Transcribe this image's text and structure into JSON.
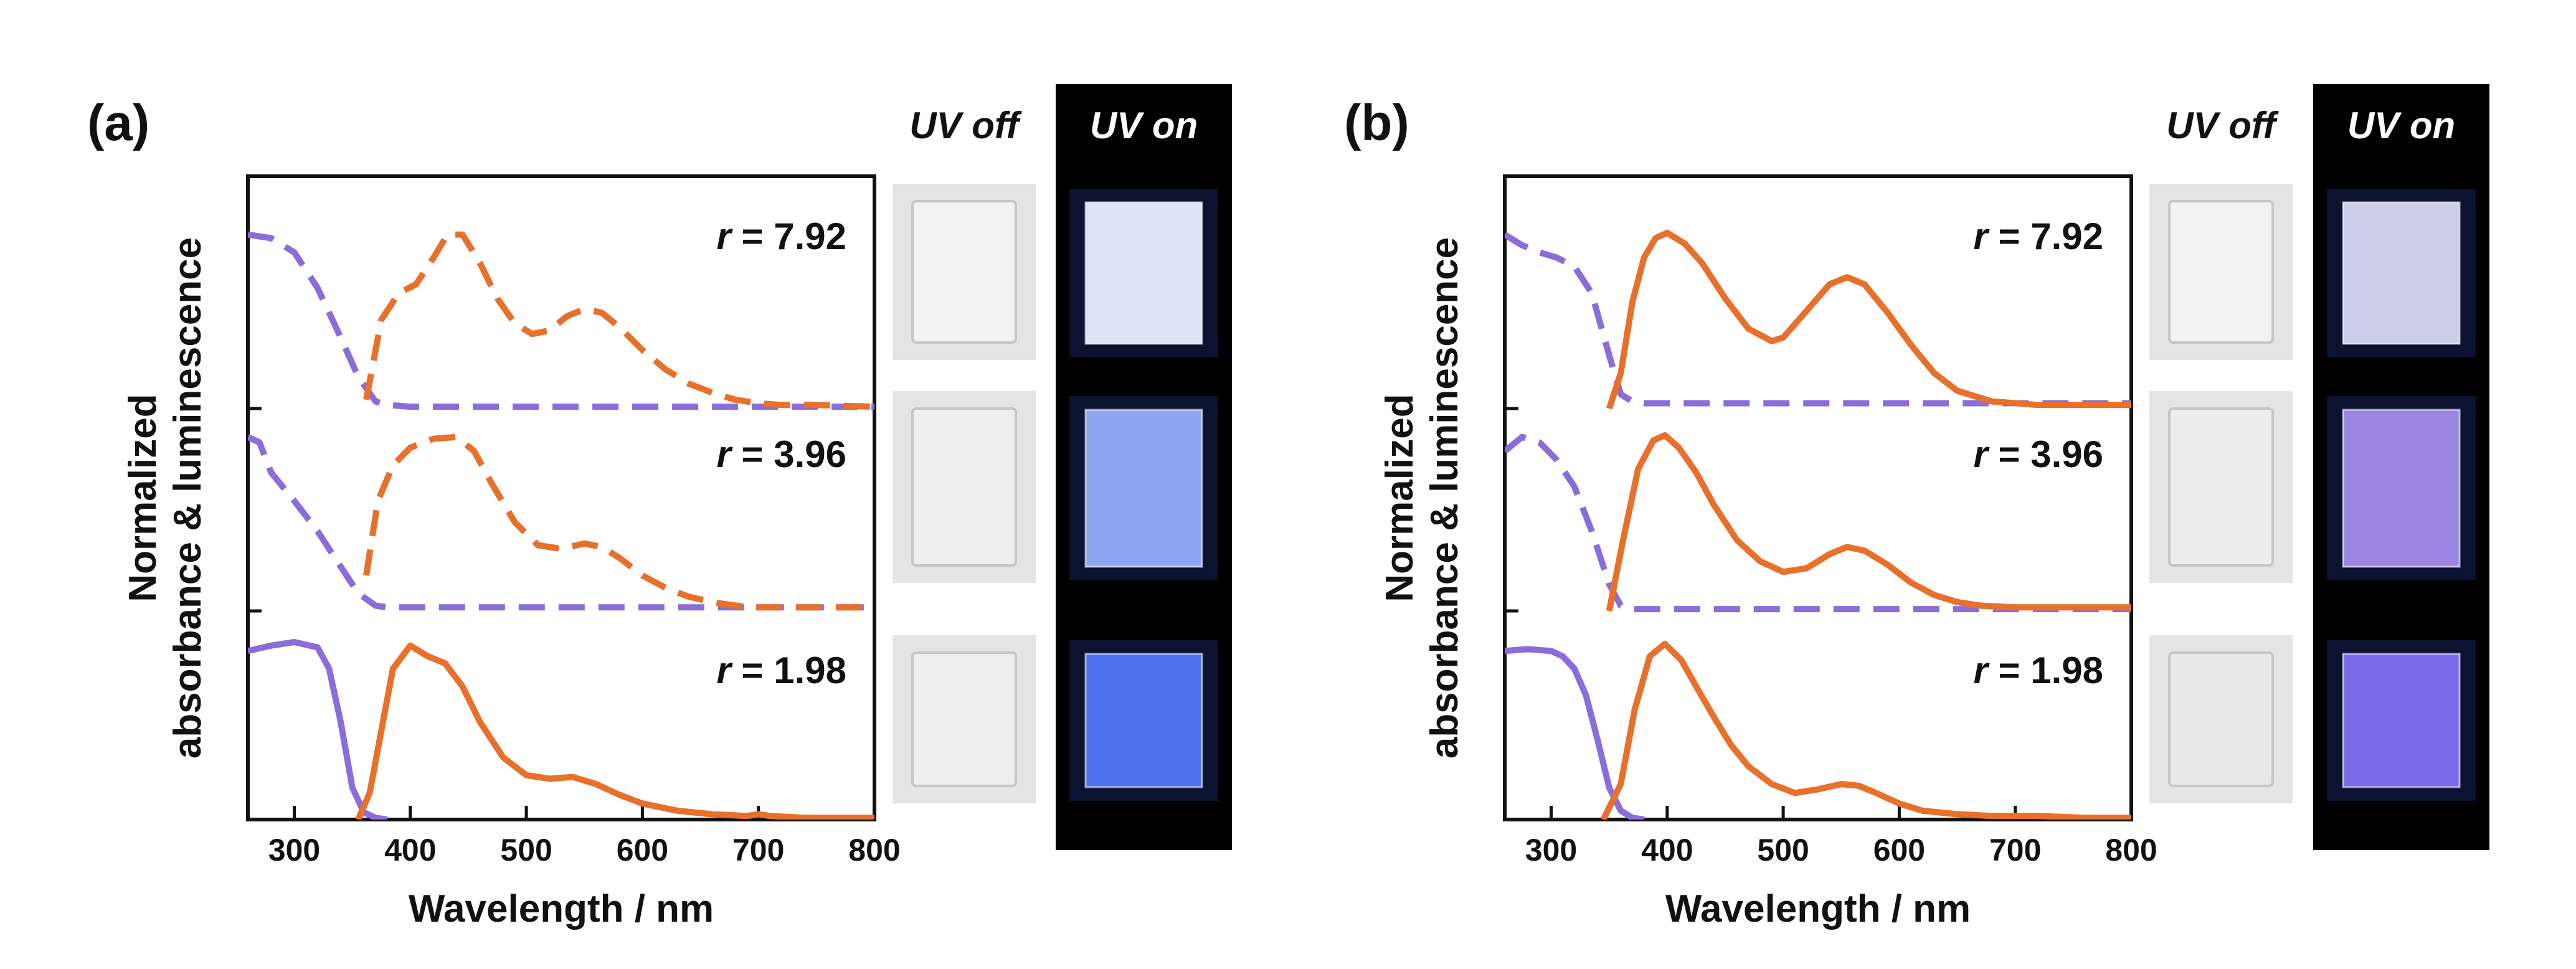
{
  "chart_data": [
    {
      "type": "line",
      "panel_label": "(a)",
      "xlabel": "Wavelength / nm",
      "ylabel_line1": "Normalized",
      "ylabel_line2": "absorbance & luminescence",
      "xlim": [
        260,
        800
      ],
      "xticks": [
        300,
        400,
        500,
        600,
        700,
        800
      ],
      "x_tick_labels": [
        "300",
        "400",
        "500",
        "600",
        "700",
        "800"
      ],
      "y_ticks_shown": false,
      "stacked_traces": [
        {
          "label_prefix": "r",
          "label_value": "= 7.92",
          "line_style": "dashed",
          "absorbance": {
            "color": "#8B6CDB",
            "x": [
              260,
              280,
              300,
              320,
              340,
              355,
              370,
              380,
              400,
              500,
              600,
              700,
              800
            ],
            "y": [
              0.98,
              0.96,
              0.88,
              0.68,
              0.4,
              0.18,
              0.04,
              0.02,
              0.01,
              0.01,
              0.01,
              0.01,
              0.01
            ]
          },
          "luminescence": {
            "color": "#E8702A",
            "x": [
              362,
              375,
              390,
              405,
              420,
              432,
              445,
              460,
              475,
              490,
              505,
              520,
              535,
              550,
              565,
              580,
              600,
              620,
              640,
              660,
              680,
              700,
              720,
              750,
              800
            ],
            "y": [
              0.05,
              0.5,
              0.65,
              0.7,
              0.85,
              0.98,
              0.98,
              0.82,
              0.62,
              0.48,
              0.42,
              0.44,
              0.52,
              0.56,
              0.54,
              0.46,
              0.33,
              0.22,
              0.14,
              0.09,
              0.05,
              0.03,
              0.02,
              0.02,
              0.01
            ]
          }
        },
        {
          "label_prefix": "r",
          "label_value": "= 3.96",
          "line_style": "dashed",
          "absorbance": {
            "color": "#8B6CDB",
            "x": [
              260,
              270,
              280,
              300,
              320,
              340,
              355,
              370,
              380,
              400,
              500,
              600,
              700,
              800
            ],
            "y": [
              0.98,
              0.95,
              0.78,
              0.62,
              0.45,
              0.25,
              0.1,
              0.03,
              0.02,
              0.02,
              0.02,
              0.02,
              0.02,
              0.02
            ]
          },
          "luminescence": {
            "color": "#E8702A",
            "x": [
              362,
              372,
              385,
              400,
              420,
              440,
              455,
              470,
              490,
              510,
              530,
              550,
              565,
              580,
              600,
              620,
              640,
              660,
              680,
              700,
              730,
              760,
              800
            ],
            "y": [
              0.2,
              0.62,
              0.82,
              0.92,
              0.97,
              0.98,
              0.9,
              0.72,
              0.5,
              0.37,
              0.35,
              0.38,
              0.36,
              0.3,
              0.2,
              0.13,
              0.08,
              0.05,
              0.03,
              0.02,
              0.02,
              0.02,
              0.02
            ]
          }
        },
        {
          "label_prefix": "r",
          "label_value": "= 1.98",
          "line_style": "solid",
          "absorbance": {
            "color": "#8B6CDB",
            "x": [
              260,
              280,
              300,
              320,
              330,
              340,
              350,
              360,
              370,
              380
            ],
            "y": [
              0.95,
              0.98,
              1.0,
              0.97,
              0.85,
              0.55,
              0.18,
              0.04,
              0.01,
              0.0
            ]
          },
          "luminescence": {
            "color": "#E8702A",
            "x": [
              355,
              365,
              375,
              385,
              400,
              415,
              430,
              445,
              460,
              480,
              500,
              520,
              540,
              560,
              580,
              600,
              630,
              660,
              690,
              700,
              710,
              740,
              800
            ],
            "y": [
              0.0,
              0.15,
              0.5,
              0.85,
              0.98,
              0.92,
              0.88,
              0.75,
              0.55,
              0.35,
              0.25,
              0.23,
              0.24,
              0.2,
              0.14,
              0.09,
              0.05,
              0.03,
              0.02,
              0.03,
              0.02,
              0.01,
              0.01
            ]
          }
        }
      ],
      "photos": {
        "off_title": "UV off",
        "on_title": "UV on",
        "off_rows": [
          "#f2f2f2",
          "#eeeeee",
          "#eeeeee"
        ],
        "on_rows": [
          "#dde3f7",
          "#8ea6f2",
          "#4f73f0"
        ]
      }
    },
    {
      "type": "line",
      "panel_label": "(b)",
      "xlabel": "Wavelength / nm",
      "ylabel_line1": "Normalized",
      "ylabel_line2": "absorbance & luminescence",
      "xlim": [
        260,
        800
      ],
      "xticks": [
        300,
        400,
        500,
        600,
        700,
        800
      ],
      "x_tick_labels": [
        "300",
        "400",
        "500",
        "600",
        "700",
        "800"
      ],
      "y_ticks_shown": false,
      "stacked_traces": [
        {
          "label_prefix": "r",
          "label_value": "= 7.92",
          "absorbance": {
            "color": "#8B6CDB",
            "line_style": "dashed",
            "x": [
              260,
              275,
              290,
              305,
              320,
              335,
              350,
              360,
              370,
              380,
              400,
              500,
              600,
              700,
              800
            ],
            "y": [
              0.98,
              0.92,
              0.88,
              0.85,
              0.8,
              0.65,
              0.3,
              0.08,
              0.04,
              0.03,
              0.03,
              0.03,
              0.03,
              0.03,
              0.03
            ]
          },
          "luminescence": {
            "color": "#E8702A",
            "line_style": "solid",
            "x": [
              350,
              360,
              370,
              380,
              390,
              400,
              415,
              430,
              450,
              470,
              490,
              500,
              520,
              540,
              555,
              570,
              590,
              610,
              630,
              650,
              680,
              720,
              760,
              800
            ],
            "y": [
              0.0,
              0.2,
              0.6,
              0.85,
              0.96,
              0.99,
              0.93,
              0.82,
              0.62,
              0.45,
              0.38,
              0.4,
              0.55,
              0.7,
              0.74,
              0.7,
              0.54,
              0.36,
              0.2,
              0.1,
              0.04,
              0.02,
              0.02,
              0.02
            ]
          }
        },
        {
          "label_prefix": "r",
          "label_value": "= 3.96",
          "absorbance": {
            "color": "#8B6CDB",
            "line_style": "dashed",
            "x": [
              260,
              275,
              290,
              305,
              320,
              335,
              350,
              360,
              370,
              380,
              400,
              500,
              600,
              700,
              800
            ],
            "y": [
              0.9,
              0.98,
              0.95,
              0.85,
              0.7,
              0.45,
              0.15,
              0.03,
              0.01,
              0.01,
              0.01,
              0.01,
              0.01,
              0.01,
              0.01
            ]
          },
          "luminescence": {
            "color": "#E8702A",
            "line_style": "solid",
            "x": [
              350,
              362,
              375,
              388,
              398,
              410,
              425,
              440,
              460,
              480,
              500,
              520,
              540,
              555,
              570,
              590,
              610,
              630,
              650,
              670,
              700,
              740,
              800
            ],
            "y": [
              0.0,
              0.4,
              0.8,
              0.96,
              0.99,
              0.92,
              0.78,
              0.6,
              0.4,
              0.28,
              0.22,
              0.24,
              0.32,
              0.36,
              0.34,
              0.26,
              0.16,
              0.09,
              0.05,
              0.03,
              0.02,
              0.02,
              0.02
            ]
          }
        },
        {
          "label_prefix": "r",
          "label_value": "= 1.98",
          "absorbance": {
            "color": "#8B6CDB",
            "line_style": "solid",
            "x": [
              260,
              280,
              300,
              310,
              320,
              330,
              340,
              350,
              360,
              370,
              380
            ],
            "y": [
              0.95,
              0.96,
              0.95,
              0.92,
              0.85,
              0.7,
              0.45,
              0.18,
              0.05,
              0.01,
              0.0
            ]
          },
          "luminescence": {
            "color": "#E8702A",
            "line_style": "solid",
            "x": [
              345,
              360,
              372,
              385,
              398,
              412,
              425,
              440,
              455,
              470,
              490,
              510,
              530,
              550,
              565,
              580,
              600,
              620,
              650,
              680,
              720,
              760,
              800
            ],
            "y": [
              0.0,
              0.2,
              0.62,
              0.92,
              0.99,
              0.9,
              0.75,
              0.58,
              0.42,
              0.3,
              0.2,
              0.15,
              0.17,
              0.2,
              0.19,
              0.15,
              0.09,
              0.05,
              0.03,
              0.02,
              0.02,
              0.01,
              0.01
            ]
          }
        }
      ],
      "photos": {
        "off_title": "UV off",
        "on_title": "UV on",
        "off_rows": [
          "#f2f2f2",
          "#ededed",
          "#e8e8e8"
        ],
        "on_rows": [
          "#c9cde8",
          "#9a86e0",
          "#7a68e8"
        ]
      }
    }
  ]
}
